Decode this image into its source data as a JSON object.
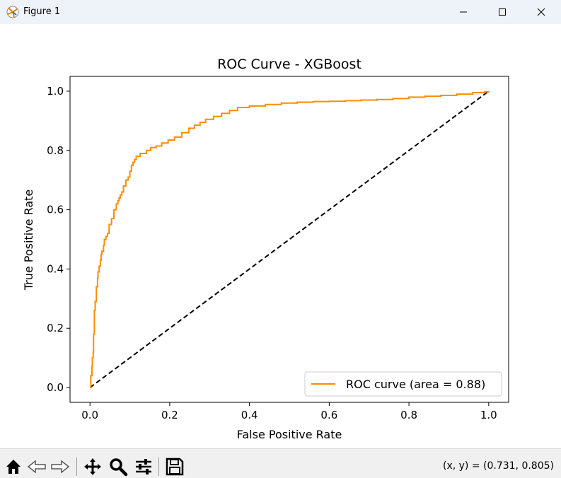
{
  "window": {
    "title": "Figure 1",
    "icons": {
      "app": "matplotlib-icon",
      "minimize": "minimize-icon",
      "maximize": "maximize-icon",
      "close": "close-icon"
    }
  },
  "toolbar": {
    "buttons": [
      {
        "name": "home",
        "icon": "home-icon"
      },
      {
        "name": "back",
        "icon": "arrow-left-icon"
      },
      {
        "name": "forward",
        "icon": "arrow-right-icon"
      },
      {
        "name": "pan",
        "icon": "move-icon"
      },
      {
        "name": "zoom",
        "icon": "magnifier-icon"
      },
      {
        "name": "configure-subplots",
        "icon": "sliders-icon"
      },
      {
        "name": "save",
        "icon": "floppy-disk-icon"
      }
    ],
    "coordinates": "(x, y) = (0.731, 0.805)"
  },
  "chart_data": {
    "type": "line",
    "title": "ROC Curve - XGBoost",
    "xlabel": "False Positive Rate",
    "ylabel": "True Positive Rate",
    "xlim": [
      -0.05,
      1.05
    ],
    "ylim": [
      -0.05,
      1.05
    ],
    "xticks": [
      0.0,
      0.2,
      0.4,
      0.6,
      0.8,
      1.0
    ],
    "yticks": [
      0.0,
      0.2,
      0.4,
      0.6,
      0.8,
      1.0
    ],
    "xtick_labels": [
      "0.0",
      "0.2",
      "0.4",
      "0.6",
      "0.8",
      "1.0"
    ],
    "ytick_labels": [
      "0.0",
      "0.2",
      "0.4",
      "0.6",
      "0.8",
      "1.0"
    ],
    "grid": false,
    "legend_position": "lower right",
    "series": [
      {
        "name": "ROC curve (area = 0.88)",
        "color": "#ff8c00",
        "style": "solid",
        "x": [
          0.0,
          0.002,
          0.005,
          0.006,
          0.008,
          0.009,
          0.011,
          0.013,
          0.016,
          0.019,
          0.02,
          0.023,
          0.026,
          0.028,
          0.03,
          0.034,
          0.036,
          0.04,
          0.044,
          0.048,
          0.054,
          0.06,
          0.066,
          0.07,
          0.073,
          0.076,
          0.08,
          0.084,
          0.09,
          0.096,
          0.1,
          0.104,
          0.108,
          0.112,
          0.116,
          0.12,
          0.126,
          0.134,
          0.142,
          0.152,
          0.166,
          0.18,
          0.196,
          0.212,
          0.23,
          0.248,
          0.262,
          0.276,
          0.29,
          0.31,
          0.33,
          0.35,
          0.37,
          0.4,
          0.44,
          0.48,
          0.52,
          0.56,
          0.6,
          0.64,
          0.68,
          0.72,
          0.76,
          0.8,
          0.84,
          0.88,
          0.92,
          0.96,
          0.99,
          1.0
        ],
        "y": [
          0.0,
          0.04,
          0.07,
          0.1,
          0.12,
          0.18,
          0.26,
          0.29,
          0.34,
          0.37,
          0.39,
          0.41,
          0.43,
          0.45,
          0.46,
          0.48,
          0.5,
          0.51,
          0.52,
          0.55,
          0.57,
          0.6,
          0.62,
          0.63,
          0.64,
          0.65,
          0.66,
          0.68,
          0.7,
          0.71,
          0.73,
          0.75,
          0.76,
          0.77,
          0.78,
          0.78,
          0.79,
          0.79,
          0.8,
          0.81,
          0.815,
          0.825,
          0.835,
          0.845,
          0.86,
          0.875,
          0.885,
          0.895,
          0.905,
          0.915,
          0.925,
          0.935,
          0.945,
          0.95,
          0.955,
          0.96,
          0.963,
          0.965,
          0.966,
          0.968,
          0.97,
          0.972,
          0.975,
          0.98,
          0.983,
          0.986,
          0.99,
          0.995,
          0.998,
          1.0
        ]
      },
      {
        "name": "",
        "color": "#000000",
        "style": "dashed",
        "x": [
          0.0,
          1.0
        ],
        "y": [
          0.0,
          1.0
        ]
      }
    ]
  }
}
